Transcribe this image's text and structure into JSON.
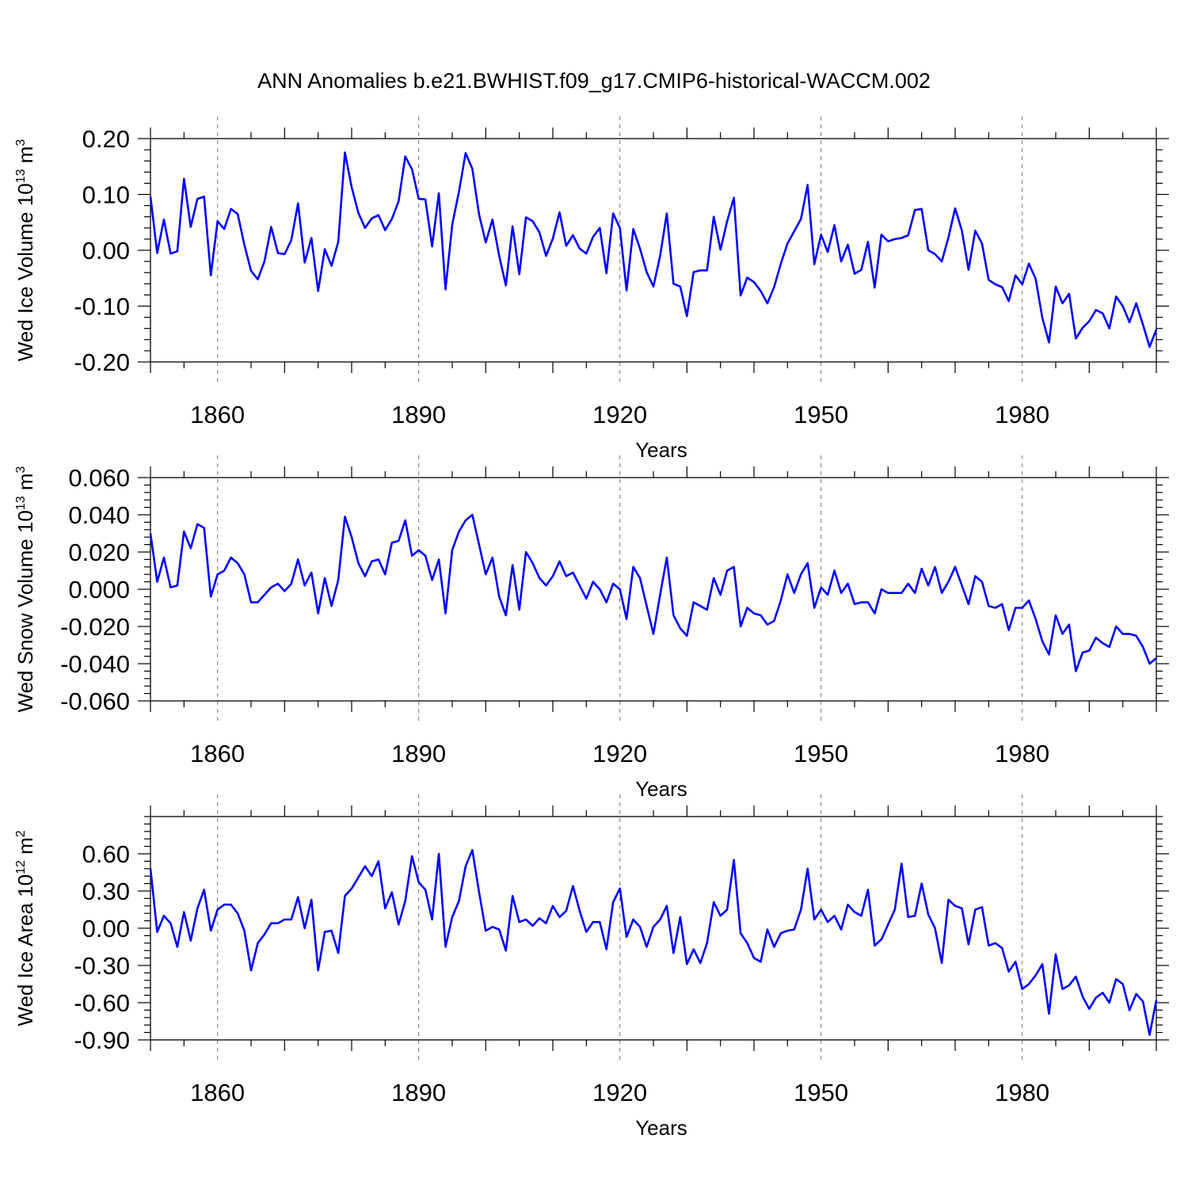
{
  "title": "ANN Anomalies b.e21.BWHIST.f09_g17.CMIP6-historical-WACCM.002",
  "colors": {
    "line": "#0000ff",
    "frame": "#000000",
    "grid": "#777777"
  },
  "chart_data": [
    {
      "type": "line",
      "ylabel": {
        "text": "Wed Ice Volume 10",
        "sup": "13",
        "unit": " m",
        "unit_sup": "3"
      },
      "xlabel": "Years",
      "xlim": [
        1850,
        2000
      ],
      "ylim": [
        -0.2,
        0.2
      ],
      "x_ticks": [
        1860,
        1890,
        1920,
        1950,
        1980
      ],
      "y_ticks": [
        -0.2,
        -0.1,
        0.0,
        0.1,
        0.2
      ],
      "y_tick_labels": [
        "-0.20",
        "-0.10",
        "0.00",
        "0.10",
        "0.20"
      ],
      "grid": "dashed vertical at major x ticks",
      "x_start": 1850,
      "series": [
        {
          "values": [
            0.096,
            -0.005,
            0.055,
            -0.006,
            -0.002,
            0.128,
            0.042,
            0.092,
            0.096,
            -0.045,
            0.052,
            0.038,
            0.074,
            0.065,
            0.01,
            -0.037,
            -0.052,
            -0.02,
            0.042,
            -0.005,
            -0.007,
            0.018,
            0.084,
            -0.022,
            0.022,
            -0.073,
            0.002,
            -0.028,
            0.015,
            0.175,
            0.113,
            0.067,
            0.04,
            0.057,
            0.063,
            0.036,
            0.056,
            0.088,
            0.168,
            0.145,
            0.092,
            0.091,
            0.007,
            0.102,
            -0.07,
            0.046,
            0.105,
            0.174,
            0.146,
            0.064,
            0.014,
            0.055,
            -0.01,
            -0.063,
            0.043,
            -0.043,
            0.059,
            0.052,
            0.032,
            -0.01,
            0.021,
            0.068,
            0.008,
            0.027,
            0.003,
            -0.006,
            0.024,
            0.04,
            -0.041,
            0.066,
            0.04,
            -0.072,
            0.038,
            0.003,
            -0.039,
            -0.065,
            -0.01,
            0.066,
            -0.06,
            -0.065,
            -0.118,
            -0.039,
            -0.036,
            -0.036,
            0.06,
            0.001,
            0.052,
            0.094,
            -0.081,
            -0.049,
            -0.057,
            -0.073,
            -0.095,
            -0.066,
            -0.024,
            0.012,
            0.034,
            0.056,
            0.117,
            -0.025,
            0.028,
            -0.003,
            0.045,
            -0.02,
            0.01,
            -0.042,
            -0.035,
            0.015,
            -0.067,
            0.028,
            0.016,
            0.02,
            0.022,
            0.027,
            0.072,
            0.074,
            0.0,
            -0.007,
            -0.02,
            0.023,
            0.075,
            0.035,
            -0.035,
            0.035,
            0.012,
            -0.053,
            -0.061,
            -0.066,
            -0.091,
            -0.045,
            -0.061,
            -0.024,
            -0.051,
            -0.121,
            -0.165,
            -0.065,
            -0.095,
            -0.078,
            -0.158,
            -0.139,
            -0.127,
            -0.107,
            -0.113,
            -0.14,
            -0.083,
            -0.1,
            -0.129,
            -0.095,
            -0.133,
            -0.173,
            -0.142
          ]
        }
      ]
    },
    {
      "type": "line",
      "ylabel": {
        "text": "Wed Snow Volume 10",
        "sup": "13",
        "unit": " m",
        "unit_sup": "3"
      },
      "xlabel": "Years",
      "xlim": [
        1850,
        2000
      ],
      "ylim": [
        -0.06,
        0.06
      ],
      "x_ticks": [
        1860,
        1890,
        1920,
        1950,
        1980
      ],
      "y_ticks": [
        -0.06,
        -0.04,
        -0.02,
        0.0,
        0.02,
        0.04,
        0.06
      ],
      "y_tick_labels": [
        "-0.060",
        "-0.040",
        "-0.020",
        "0.000",
        "0.020",
        "0.040",
        "0.060"
      ],
      "grid": "dashed vertical at major x ticks",
      "x_start": 1850,
      "series": [
        {
          "values": [
            0.03,
            0.004,
            0.017,
            0.001,
            0.002,
            0.031,
            0.022,
            0.035,
            0.033,
            -0.004,
            0.008,
            0.01,
            0.017,
            0.014,
            0.008,
            -0.007,
            -0.007,
            -0.003,
            0.001,
            0.003,
            -0.001,
            0.003,
            0.016,
            0.002,
            0.009,
            -0.013,
            0.006,
            -0.009,
            0.005,
            0.039,
            0.028,
            0.014,
            0.007,
            0.015,
            0.016,
            0.008,
            0.025,
            0.026,
            0.037,
            0.018,
            0.021,
            0.018,
            0.005,
            0.016,
            -0.013,
            0.021,
            0.031,
            0.037,
            0.04,
            0.024,
            0.008,
            0.017,
            -0.004,
            -0.014,
            0.013,
            -0.011,
            0.02,
            0.014,
            0.006,
            0.002,
            0.007,
            0.015,
            0.007,
            0.009,
            0.002,
            -0.005,
            0.004,
            0.0,
            -0.007,
            0.003,
            0.0,
            -0.016,
            0.012,
            0.006,
            -0.009,
            -0.024,
            -0.003,
            0.017,
            -0.014,
            -0.021,
            -0.025,
            -0.007,
            -0.009,
            -0.011,
            0.006,
            -0.003,
            0.01,
            0.012,
            -0.02,
            -0.01,
            -0.013,
            -0.014,
            -0.019,
            -0.017,
            -0.006,
            0.008,
            -0.002,
            0.008,
            0.014,
            -0.01,
            0.001,
            -0.003,
            0.01,
            -0.002,
            0.003,
            -0.008,
            -0.007,
            -0.007,
            -0.013,
            0.0,
            -0.002,
            -0.002,
            -0.002,
            0.003,
            -0.002,
            0.011,
            0.002,
            0.012,
            -0.002,
            0.004,
            0.012,
            0.002,
            -0.008,
            0.007,
            0.004,
            -0.009,
            -0.01,
            -0.008,
            -0.022,
            -0.01,
            -0.01,
            -0.006,
            -0.016,
            -0.028,
            -0.035,
            -0.014,
            -0.024,
            -0.019,
            -0.044,
            -0.034,
            -0.033,
            -0.026,
            -0.029,
            -0.031,
            -0.02,
            -0.024,
            -0.024,
            -0.025,
            -0.031,
            -0.04,
            -0.037
          ]
        }
      ]
    },
    {
      "type": "line",
      "ylabel": {
        "text": "Wed Ice Area 10",
        "sup": "12",
        "unit": " m",
        "unit_sup": "2"
      },
      "xlabel": "Years",
      "xlim": [
        1850,
        2000
      ],
      "ylim": [
        -0.9,
        0.9
      ],
      "x_ticks": [
        1860,
        1890,
        1920,
        1950,
        1980
      ],
      "y_ticks": [
        -0.9,
        -0.6,
        -0.3,
        0.0,
        0.3,
        0.6
      ],
      "y_tick_labels": [
        "-0.90",
        "-0.60",
        "-0.30",
        "0.00",
        "0.30",
        "0.60"
      ],
      "grid": "dashed vertical at major x ticks",
      "x_start": 1850,
      "series": [
        {
          "values": [
            0.48,
            -0.03,
            0.1,
            0.04,
            -0.15,
            0.13,
            -0.1,
            0.16,
            0.31,
            -0.02,
            0.15,
            0.19,
            0.19,
            0.12,
            -0.02,
            -0.34,
            -0.12,
            -0.05,
            0.04,
            0.04,
            0.07,
            0.07,
            0.25,
            0.0,
            0.23,
            -0.34,
            -0.03,
            -0.02,
            -0.2,
            0.26,
            0.32,
            0.41,
            0.5,
            0.42,
            0.54,
            0.16,
            0.29,
            0.03,
            0.22,
            0.58,
            0.37,
            0.31,
            0.07,
            0.6,
            -0.15,
            0.09,
            0.22,
            0.5,
            0.63,
            0.29,
            -0.02,
            0.01,
            -0.01,
            -0.18,
            0.26,
            0.05,
            0.07,
            0.02,
            0.08,
            0.04,
            0.18,
            0.09,
            0.14,
            0.34,
            0.14,
            -0.03,
            0.05,
            0.05,
            -0.17,
            0.21,
            0.32,
            -0.07,
            0.07,
            0.01,
            -0.15,
            0.01,
            0.07,
            0.18,
            -0.2,
            0.09,
            -0.29,
            -0.17,
            -0.28,
            -0.12,
            0.21,
            0.1,
            0.15,
            0.55,
            -0.04,
            -0.12,
            -0.24,
            -0.27,
            -0.01,
            -0.15,
            -0.04,
            -0.02,
            -0.01,
            0.15,
            0.48,
            0.07,
            0.15,
            0.05,
            0.1,
            -0.01,
            0.19,
            0.13,
            0.1,
            0.31,
            -0.14,
            -0.09,
            0.03,
            0.15,
            0.52,
            0.09,
            0.1,
            0.36,
            0.11,
            0.0,
            -0.28,
            0.23,
            0.18,
            0.16,
            -0.13,
            0.15,
            0.17,
            -0.14,
            -0.12,
            -0.16,
            -0.35,
            -0.27,
            -0.49,
            -0.45,
            -0.38,
            -0.29,
            -0.69,
            -0.21,
            -0.49,
            -0.46,
            -0.39,
            -0.55,
            -0.65,
            -0.56,
            -0.52,
            -0.6,
            -0.41,
            -0.45,
            -0.66,
            -0.53,
            -0.59,
            -0.86,
            -0.58
          ]
        }
      ]
    }
  ]
}
